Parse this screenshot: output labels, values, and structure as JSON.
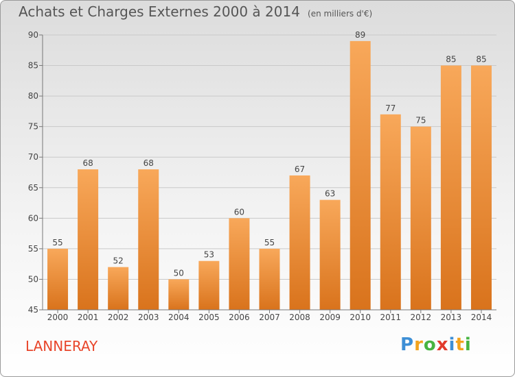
{
  "header": {
    "title": "Achats et Charges Externes 2000 à 2014",
    "unit": "(en milliers d'€)"
  },
  "commune": "LANNERAY",
  "logo": {
    "text": "Proxiti",
    "letters": [
      "P",
      "r",
      "o",
      "x",
      "i",
      "t",
      "i"
    ],
    "colors": [
      "#3d8fd6",
      "#f2a31d",
      "#47b441",
      "#e23b2c",
      "#3d8fd6",
      "#f2a31d",
      "#47b441"
    ]
  },
  "colors": {
    "bar_light": "#f8a85a",
    "bar_dark": "#d9731c",
    "title": "#555555",
    "commune": "#e8452a"
  },
  "chart_data": {
    "type": "bar",
    "title": "Achats et Charges Externes 2000 à 2014",
    "subtitle": "(en milliers d'€)",
    "categories": [
      "2000",
      "2001",
      "2002",
      "2003",
      "2004",
      "2005",
      "2006",
      "2007",
      "2008",
      "2009",
      "2010",
      "2011",
      "2012",
      "2013",
      "2014"
    ],
    "values": [
      55,
      68,
      52,
      68,
      50,
      53,
      60,
      55,
      67,
      63,
      89,
      77,
      75,
      85,
      85
    ],
    "ylim": [
      45,
      90
    ],
    "yticks": [
      45,
      50,
      55,
      60,
      65,
      70,
      75,
      80,
      85,
      90
    ],
    "grid": true,
    "data_labels": true
  }
}
